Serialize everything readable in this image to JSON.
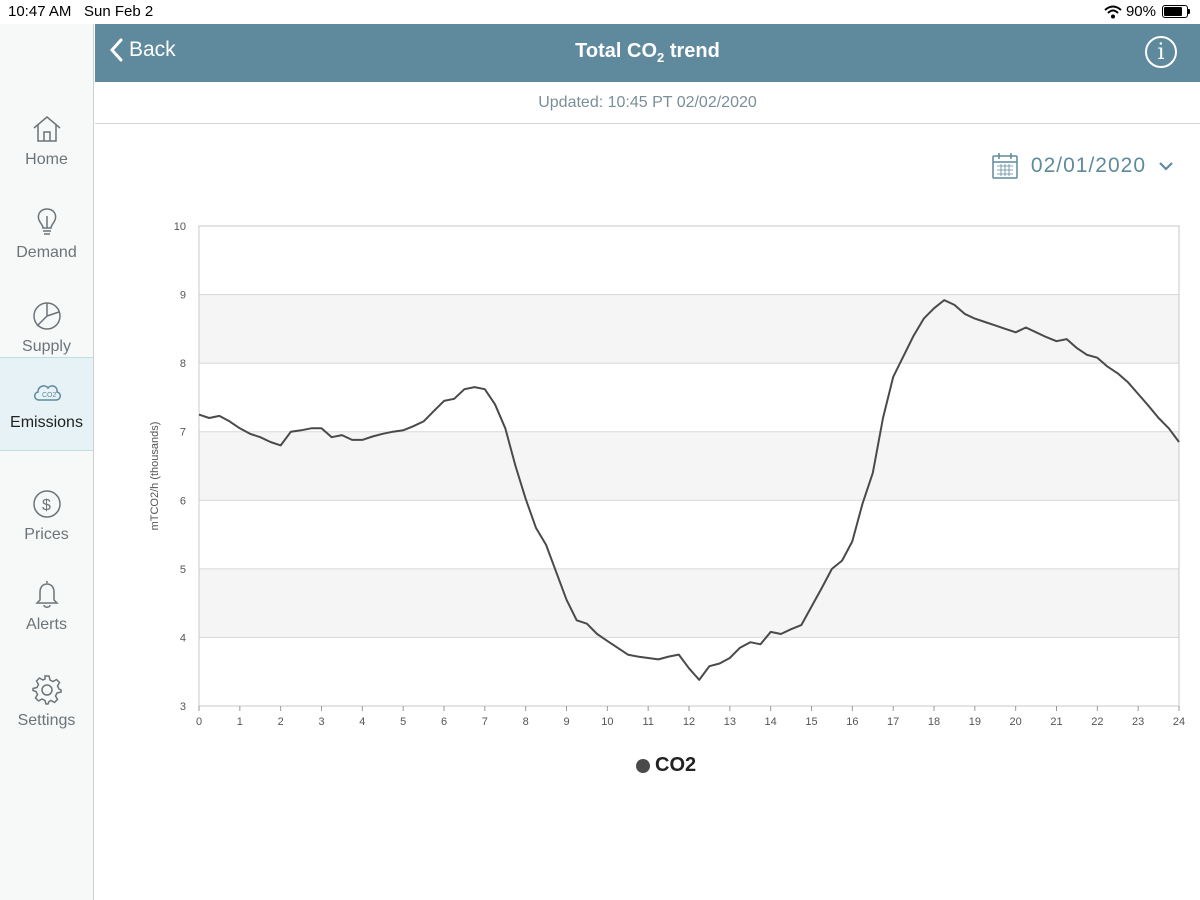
{
  "status_bar": {
    "time": "10:47 AM",
    "date": "Sun Feb 2",
    "battery": "90%",
    "battery_level": 0.9
  },
  "header": {
    "back_label": "Back",
    "title": "Total CO",
    "title_sub": "2",
    "title_suffix": " trend",
    "info_glyph": "i"
  },
  "updated_text": "Updated: 10:45 PT 02/02/2020",
  "date_picker": {
    "value": "02/01/2020"
  },
  "sidebar": {
    "items": [
      {
        "label": "Home",
        "icon": "home-icon"
      },
      {
        "label": "Demand",
        "icon": "lightbulb-icon"
      },
      {
        "label": "Supply",
        "icon": "pie-chart-icon"
      },
      {
        "label": "Emissions",
        "icon": "co2-cloud-icon",
        "active": true
      },
      {
        "label": "Prices",
        "icon": "dollar-icon"
      },
      {
        "label": "Alerts",
        "icon": "bell-icon"
      },
      {
        "label": "Settings",
        "icon": "gear-icon"
      }
    ]
  },
  "colors": {
    "header": "#5f8a9d",
    "line": "#4a4a4a",
    "active_nav": "#e6f2f5"
  },
  "chart_data": {
    "type": "line",
    "ylabel": "mTCO2/h (thousands)",
    "xlim": [
      0,
      24
    ],
    "ylim": [
      3,
      10
    ],
    "x_ticks": [
      0,
      1,
      2,
      3,
      4,
      5,
      6,
      7,
      8,
      9,
      10,
      11,
      12,
      13,
      14,
      15,
      16,
      17,
      18,
      19,
      20,
      21,
      22,
      23,
      24
    ],
    "y_ticks": [
      3,
      4,
      5,
      6,
      7,
      8,
      9,
      10
    ],
    "grid": true,
    "legend_position": "bottom",
    "series": [
      {
        "name": "CO2",
        "x": [
          0,
          0.25,
          0.5,
          0.75,
          1,
          1.25,
          1.5,
          1.75,
          2,
          2.25,
          2.5,
          2.75,
          3,
          3.25,
          3.5,
          3.75,
          4,
          4.25,
          4.5,
          4.75,
          5,
          5.25,
          5.5,
          5.75,
          6,
          6.25,
          6.5,
          6.75,
          7,
          7.25,
          7.5,
          7.75,
          8,
          8.25,
          8.5,
          8.75,
          9,
          9.25,
          9.5,
          9.75,
          10,
          10.25,
          10.5,
          10.75,
          11,
          11.25,
          11.5,
          11.75,
          12,
          12.25,
          12.5,
          12.75,
          13,
          13.25,
          13.5,
          13.75,
          14,
          14.25,
          14.5,
          14.75,
          15,
          15.25,
          15.5,
          15.75,
          16,
          16.25,
          16.5,
          16.75,
          17,
          17.25,
          17.5,
          17.75,
          18,
          18.25,
          18.5,
          18.75,
          19,
          19.25,
          19.5,
          19.75,
          20,
          20.25,
          20.5,
          20.75,
          21,
          21.25,
          21.5,
          21.75,
          22,
          22.25,
          22.5,
          22.75,
          23,
          23.25,
          23.5,
          23.75,
          24
        ],
        "values": [
          7.25,
          7.2,
          7.23,
          7.15,
          7.05,
          6.97,
          6.92,
          6.85,
          6.8,
          7.0,
          7.02,
          7.05,
          7.05,
          6.92,
          6.95,
          6.88,
          6.88,
          6.93,
          6.97,
          7.0,
          7.02,
          7.08,
          7.15,
          7.3,
          7.45,
          7.48,
          7.62,
          7.65,
          7.62,
          7.4,
          7.05,
          6.5,
          6.02,
          5.6,
          5.35,
          4.95,
          4.55,
          4.25,
          4.2,
          4.05,
          3.95,
          3.85,
          3.75,
          3.72,
          3.7,
          3.68,
          3.72,
          3.75,
          3.55,
          3.38,
          3.58,
          3.62,
          3.7,
          3.85,
          3.93,
          3.9,
          4.08,
          4.05,
          4.12,
          4.18,
          4.45,
          4.72,
          5.0,
          5.12,
          5.4,
          5.95,
          6.4,
          7.2,
          7.8,
          8.1,
          8.4,
          8.65,
          8.8,
          8.92,
          8.85,
          8.72,
          8.65,
          8.6,
          8.55,
          8.5,
          8.45,
          8.52,
          8.45,
          8.38,
          8.32,
          8.35,
          8.22,
          8.12,
          8.08,
          7.95,
          7.85,
          7.72,
          7.55,
          7.38,
          7.2,
          7.05,
          6.85
        ]
      }
    ]
  }
}
